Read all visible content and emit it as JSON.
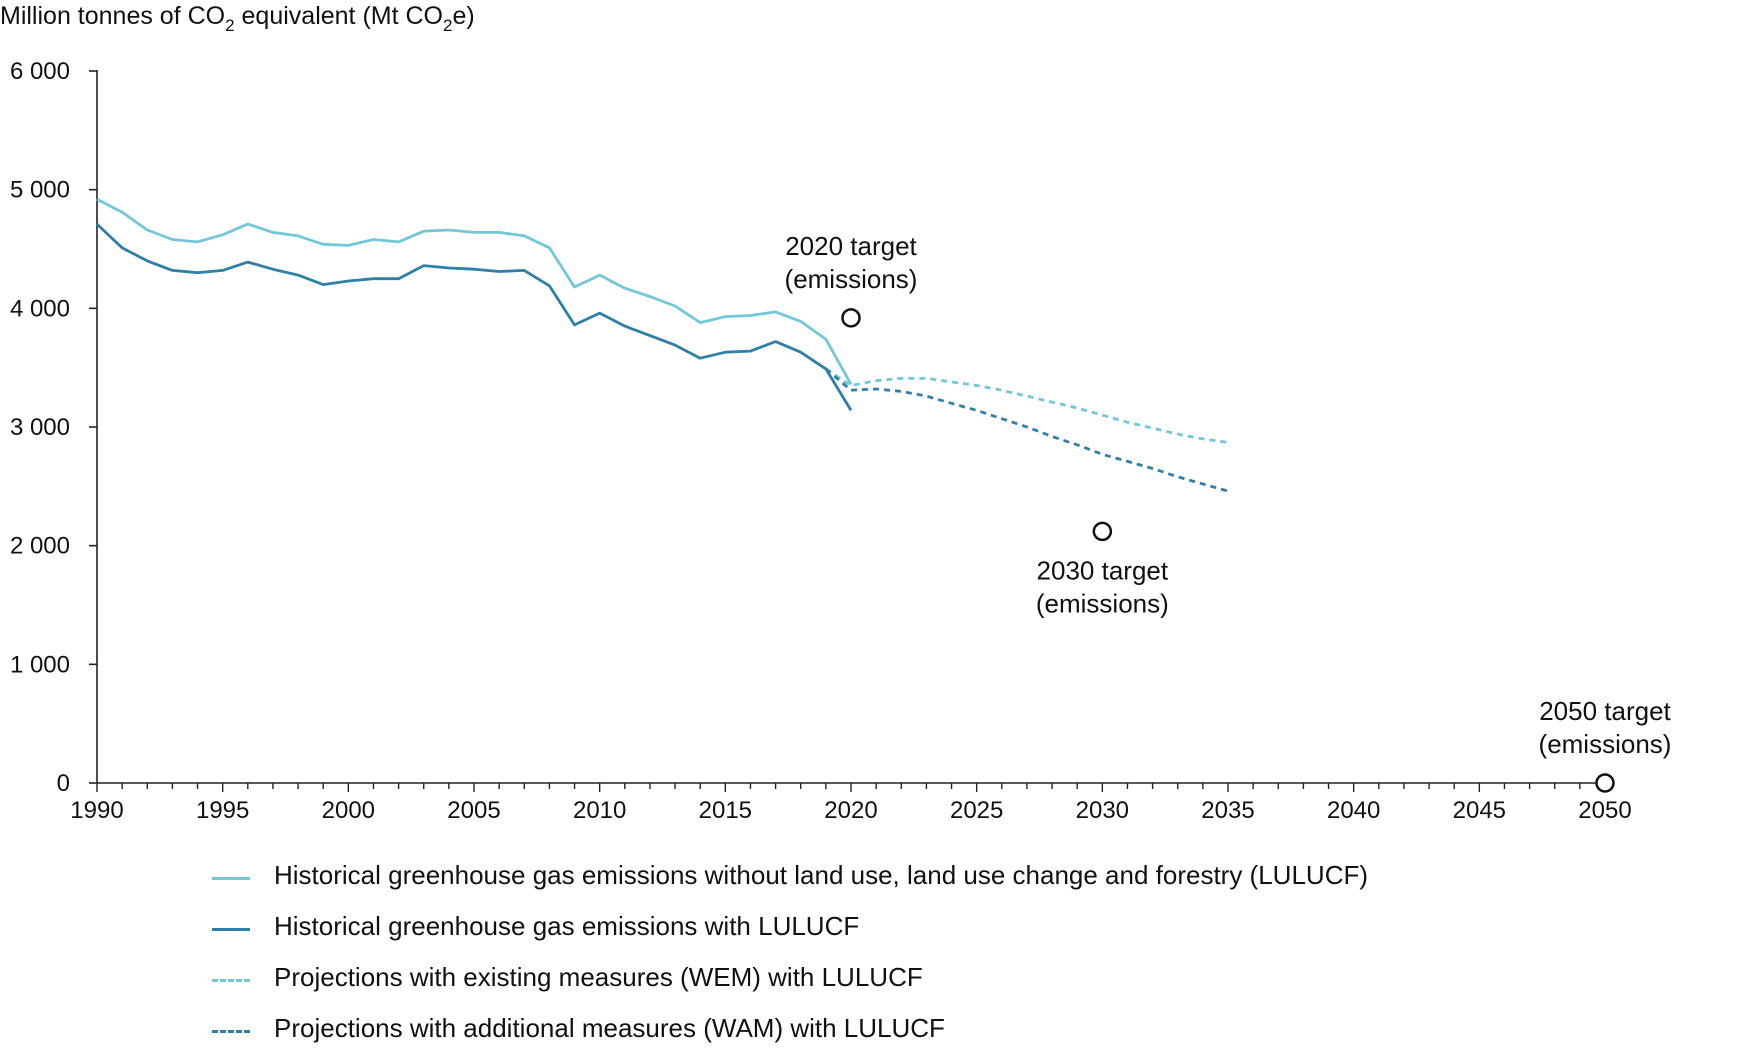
{
  "chart_data": {
    "type": "line",
    "ylabel_main": "Million tonnes of CO",
    "ylabel_sub": "2",
    "ylabel_tail": " equivalent (Mt CO",
    "ylabel_sub2": "2",
    "ylabel_end": "e)",
    "xlim": [
      1990,
      2050
    ],
    "ylim": [
      0,
      6000
    ],
    "grid": false,
    "x_ticks": [
      1990,
      1995,
      2000,
      2005,
      2010,
      2015,
      2020,
      2025,
      2030,
      2035,
      2040,
      2045,
      2050
    ],
    "x_tick_labels": [
      "1990",
      "1995",
      "2000",
      "2005",
      "2010",
      "2015",
      "2020",
      "2025",
      "2030",
      "2035",
      "2040",
      "2045",
      "2050"
    ],
    "y_ticks": [
      0,
      1000,
      2000,
      3000,
      4000,
      5000,
      6000
    ],
    "y_tick_labels": [
      "0",
      "1 000",
      "2 000",
      "3 000",
      "4 000",
      "5 000",
      "6 000"
    ],
    "legend_position": "bottom",
    "series": [
      {
        "name": "Historical greenhouse gas emissions without land use, land use change and forestry (LULUCF)",
        "color": "#72c7d9",
        "style": "solid",
        "x": [
          1990,
          1991,
          1992,
          1993,
          1994,
          1995,
          1996,
          1997,
          1998,
          1999,
          2000,
          2001,
          2002,
          2003,
          2004,
          2005,
          2006,
          2007,
          2008,
          2009,
          2010,
          2011,
          2012,
          2013,
          2014,
          2015,
          2016,
          2017,
          2018,
          2019,
          2020
        ],
        "y": [
          4920,
          4810,
          4660,
          4580,
          4560,
          4620,
          4710,
          4640,
          4610,
          4540,
          4530,
          4580,
          4560,
          4650,
          4660,
          4640,
          4640,
          4610,
          4510,
          4180,
          4280,
          4170,
          4100,
          4020,
          3880,
          3930,
          3940,
          3970,
          3890,
          3740,
          3360
        ]
      },
      {
        "name": "Historical greenhouse gas emissions with LULUCF",
        "color": "#2e80a6",
        "style": "solid",
        "x": [
          1990,
          1991,
          1992,
          1993,
          1994,
          1995,
          1996,
          1997,
          1998,
          1999,
          2000,
          2001,
          2002,
          2003,
          2004,
          2005,
          2006,
          2007,
          2008,
          2009,
          2010,
          2011,
          2012,
          2013,
          2014,
          2015,
          2016,
          2017,
          2018,
          2019,
          2020
        ],
        "y": [
          4710,
          4510,
          4400,
          4320,
          4300,
          4320,
          4390,
          4330,
          4280,
          4200,
          4230,
          4250,
          4250,
          4360,
          4340,
          4330,
          4310,
          4320,
          4190,
          3860,
          3960,
          3850,
          3770,
          3690,
          3580,
          3630,
          3640,
          3720,
          3630,
          3490,
          3140
        ]
      },
      {
        "name": "Projections with existing measures (WEM) with LULUCF",
        "color": "#72c7d9",
        "style": "dashed",
        "x": [
          2019,
          2020,
          2021,
          2022,
          2023,
          2024,
          2025,
          2026,
          2027,
          2028,
          2029,
          2030,
          2031,
          2032,
          2033,
          2034,
          2035
        ],
        "y": [
          3490,
          3350,
          3390,
          3410,
          3410,
          3380,
          3350,
          3310,
          3260,
          3210,
          3160,
          3100,
          3040,
          2990,
          2940,
          2900,
          2870
        ]
      },
      {
        "name": "Projections with additional measures (WAM) with LULUCF",
        "color": "#2e80a6",
        "style": "dashed",
        "x": [
          2019,
          2020,
          2021,
          2022,
          2023,
          2024,
          2025,
          2026,
          2027,
          2028,
          2029,
          2030,
          2031,
          2032,
          2033,
          2034,
          2035
        ],
        "y": [
          3490,
          3310,
          3320,
          3300,
          3260,
          3200,
          3140,
          3070,
          3000,
          2920,
          2850,
          2770,
          2710,
          2650,
          2580,
          2520,
          2460
        ]
      }
    ],
    "targets": [
      {
        "x": 2020,
        "y": 3920,
        "label_line1": "2020 target",
        "label_line2": "(emissions)",
        "label_side": "above"
      },
      {
        "x": 2030,
        "y": 2120,
        "label_line1": "2030 target",
        "label_line2": "(emissions)",
        "label_side": "below"
      },
      {
        "x": 2050,
        "y": 0,
        "label_line1": "2050 target",
        "label_line2": "(emissions)",
        "label_side": "above"
      }
    ]
  }
}
